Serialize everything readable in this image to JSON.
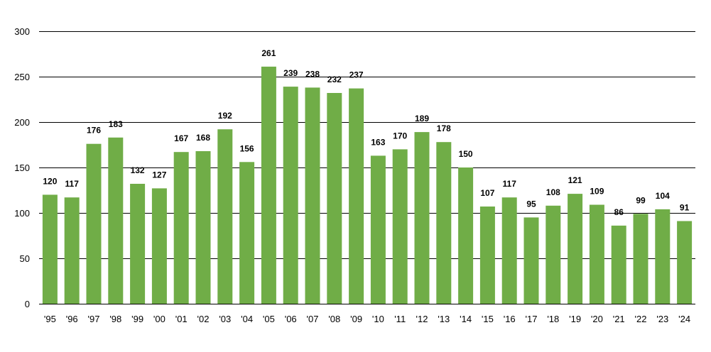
{
  "chart_data": {
    "type": "bar",
    "categories": [
      "'95",
      "'96",
      "'97",
      "'98",
      "'99",
      "'00",
      "'01",
      "'02",
      "'03",
      "'04",
      "'05",
      "'06",
      "'07",
      "'08",
      "'09",
      "'10",
      "'11",
      "'12",
      "'13",
      "'14",
      "'15",
      "'16",
      "'17",
      "'18",
      "'19",
      "'20",
      "'21",
      "'22",
      "'23",
      "'24"
    ],
    "values": [
      120,
      117,
      176,
      183,
      132,
      127,
      167,
      168,
      192,
      156,
      261,
      239,
      238,
      232,
      237,
      163,
      170,
      189,
      178,
      150,
      107,
      117,
      95,
      108,
      121,
      109,
      86,
      99,
      104,
      91
    ],
    "title": "",
    "xlabel": "",
    "ylabel": "",
    "ylim": [
      0,
      300
    ],
    "yticks": [
      0,
      50,
      100,
      150,
      200,
      250,
      300
    ],
    "grid": true,
    "bar_color": "#70ad47",
    "data_labels": true
  }
}
